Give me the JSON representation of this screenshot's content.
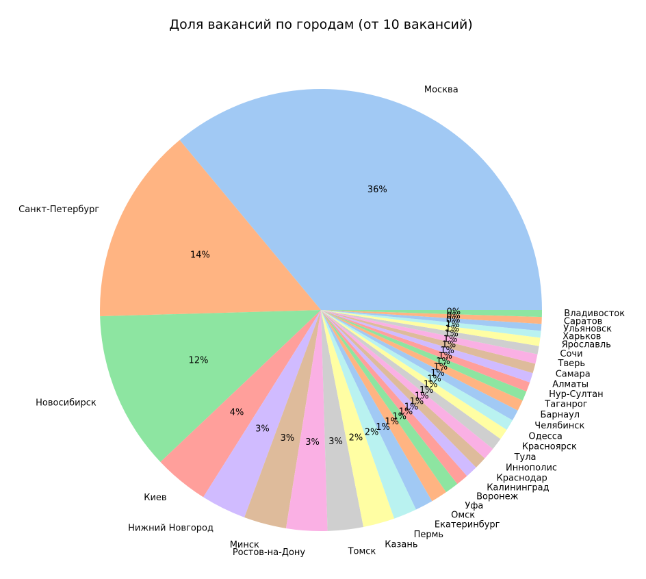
{
  "chart_data": {
    "type": "pie",
    "title": "Доля вакансий по городам (от 10 вакансий)",
    "start_angle_deg": 0,
    "direction": "counterclockwise",
    "slices": [
      {
        "label": "Москва",
        "value": 36.0,
        "pct_label": "36%",
        "color": "#a1c9f4"
      },
      {
        "label": "Санкт-Петербург",
        "value": 14.4,
        "pct_label": "14%",
        "color": "#ffb482"
      },
      {
        "label": "Новосибирск",
        "value": 11.6,
        "pct_label": "12%",
        "color": "#8de5a1"
      },
      {
        "label": "Киев",
        "value": 4.0,
        "pct_label": "4%",
        "color": "#ff9f9b"
      },
      {
        "label": "Нижний Новгород",
        "value": 3.3,
        "pct_label": "3%",
        "color": "#d0bbff"
      },
      {
        "label": "Минск",
        "value": 3.1,
        "pct_label": "3%",
        "color": "#debb9b"
      },
      {
        "label": "Ростов-на-Дону",
        "value": 3.0,
        "pct_label": "3%",
        "color": "#fab0e4"
      },
      {
        "label": "Томск",
        "value": 2.6,
        "pct_label": "3%",
        "color": "#cfcfcf"
      },
      {
        "label": "Казань",
        "value": 2.3,
        "pct_label": "2%",
        "color": "#fffea3"
      },
      {
        "label": "Пермь",
        "value": 1.7,
        "pct_label": "2%",
        "color": "#b9f2f0"
      },
      {
        "label": "Екатеринбург",
        "value": 1.3,
        "pct_label": "1%",
        "color": "#a1c9f4"
      },
      {
        "label": "Омск",
        "value": 1.2,
        "pct_label": "1%",
        "color": "#ffb482"
      },
      {
        "label": "Уфа",
        "value": 1.0,
        "pct_label": "1%",
        "color": "#8de5a1"
      },
      {
        "label": "Воронеж",
        "value": 0.9,
        "pct_label": "1%",
        "color": "#ff9f9b"
      },
      {
        "label": "Калининград",
        "value": 0.9,
        "pct_label": "1%",
        "color": "#d0bbff"
      },
      {
        "label": "Краснодар",
        "value": 0.9,
        "pct_label": "1%",
        "color": "#debb9b"
      },
      {
        "label": "Иннополис",
        "value": 0.9,
        "pct_label": "1%",
        "color": "#fab0e4"
      },
      {
        "label": "Тула",
        "value": 0.9,
        "pct_label": "1%",
        "color": "#cfcfcf"
      },
      {
        "label": "Красноярск",
        "value": 0.8,
        "pct_label": "1%",
        "color": "#fffea3"
      },
      {
        "label": "Одесса",
        "value": 0.8,
        "pct_label": "1%",
        "color": "#b9f2f0"
      },
      {
        "label": "Челябинск",
        "value": 0.8,
        "pct_label": "1%",
        "color": "#a1c9f4"
      },
      {
        "label": "Барнаул",
        "value": 0.8,
        "pct_label": "1%",
        "color": "#ffb482"
      },
      {
        "label": "Таганрог",
        "value": 0.7,
        "pct_label": "1%",
        "color": "#8de5a1"
      },
      {
        "label": "Нур-Султан",
        "value": 0.7,
        "pct_label": "1%",
        "color": "#ff9f9b"
      },
      {
        "label": "Алматы",
        "value": 0.7,
        "pct_label": "1%",
        "color": "#d0bbff"
      },
      {
        "label": "Самара",
        "value": 0.7,
        "pct_label": "1%",
        "color": "#debb9b"
      },
      {
        "label": "Тверь",
        "value": 0.7,
        "pct_label": "1%",
        "color": "#fab0e4"
      },
      {
        "label": "Сочи",
        "value": 0.6,
        "pct_label": "1%",
        "color": "#cfcfcf"
      },
      {
        "label": "Ярославль",
        "value": 0.6,
        "pct_label": "1%",
        "color": "#fffea3"
      },
      {
        "label": "Харьков",
        "value": 0.5,
        "pct_label": "1%",
        "color": "#b9f2f0"
      },
      {
        "label": "Ульяновск",
        "value": 0.5,
        "pct_label": "0%",
        "color": "#a1c9f4"
      },
      {
        "label": "Саратов",
        "value": 0.5,
        "pct_label": "0%",
        "color": "#ffb482"
      },
      {
        "label": "Владивосток",
        "value": 0.5,
        "pct_label": "0%",
        "color": "#8de5a1"
      }
    ]
  }
}
